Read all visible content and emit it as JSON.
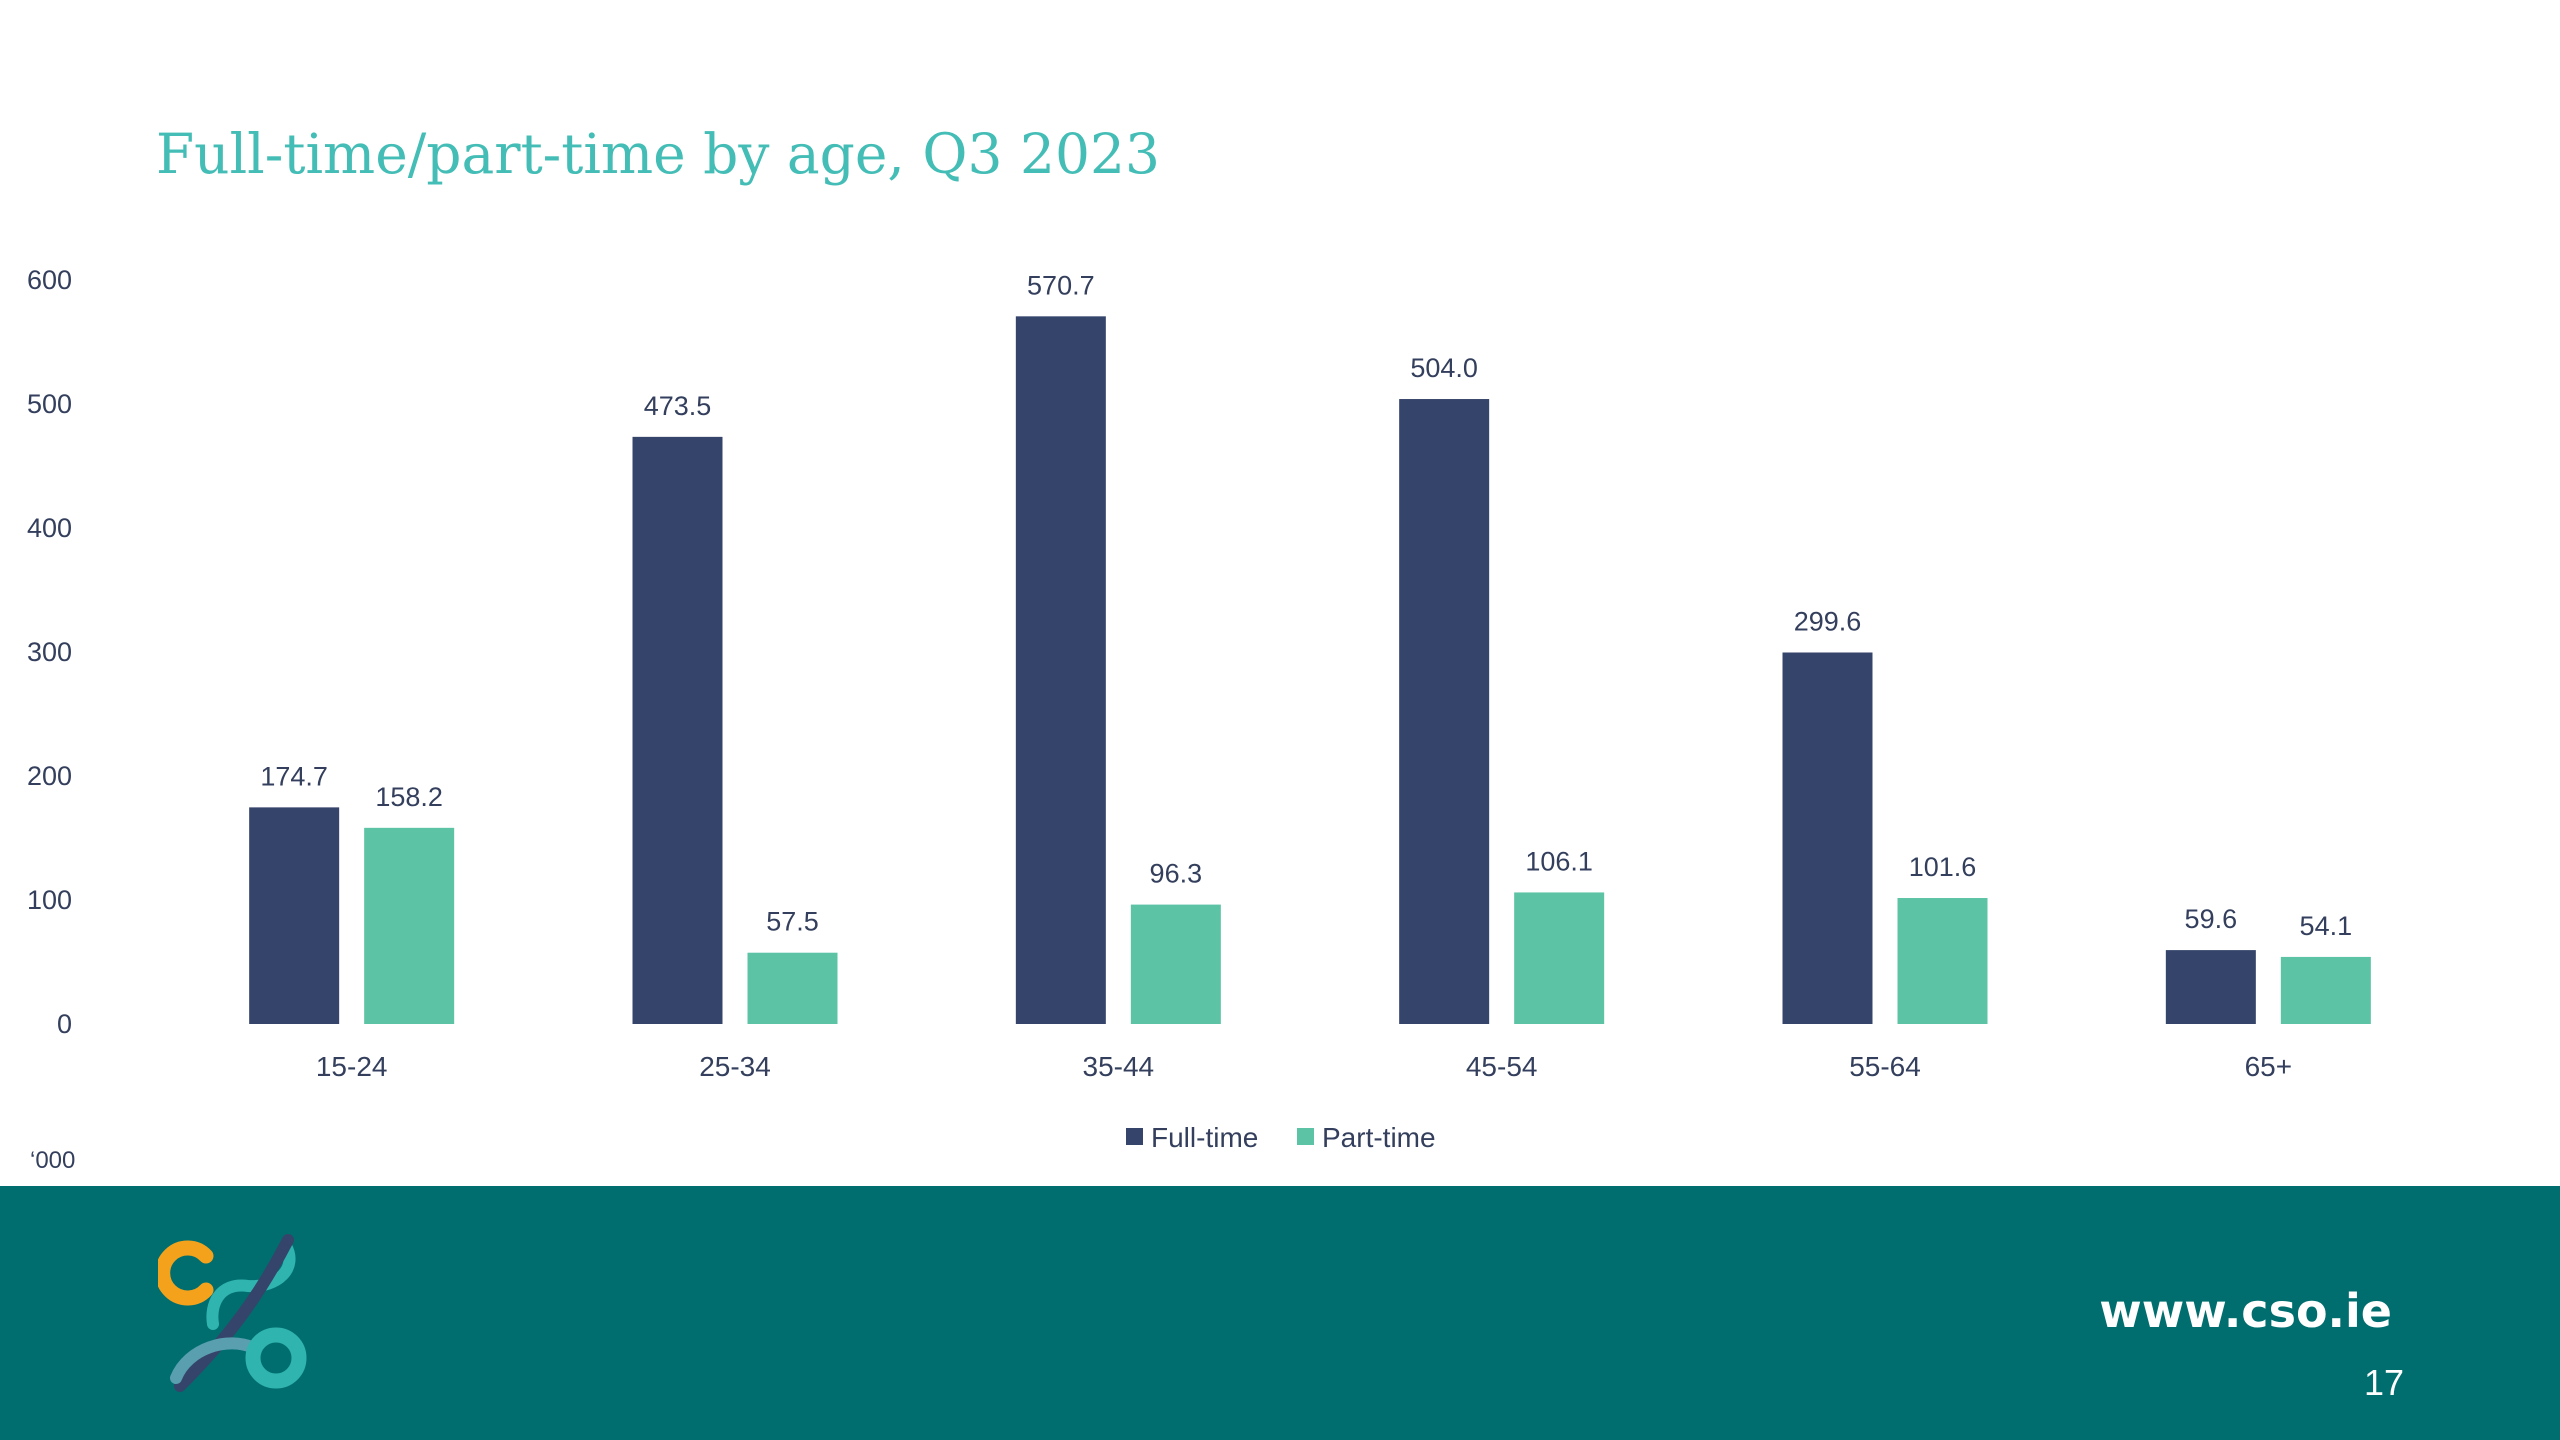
{
  "slide": {
    "title": "Full-time/part-time by age, Q3 2023",
    "unit_note": "‘000",
    "url": "www.cso.ie",
    "page_number": "17",
    "logo_icon": "cso-logo-icon"
  },
  "colors": {
    "title": "#44bdb6",
    "full_time": "#35446a",
    "part_time": "#5cc3a4",
    "footer": "#006e6f",
    "text": "#333f5c"
  },
  "chart_data": {
    "type": "bar",
    "title": "Full-time/part-time by age, Q3 2023",
    "xlabel": "",
    "ylabel": "",
    "unit": "‘000",
    "categories": [
      "15-24",
      "25-34",
      "35-44",
      "45-54",
      "55-64",
      "65+"
    ],
    "series": [
      {
        "name": "Full-time",
        "values": [
          174.7,
          473.5,
          570.7,
          504.0,
          299.6,
          59.6
        ],
        "labels": [
          "174.7",
          "473.5",
          "570.7",
          "504.0",
          "299.6",
          "59.6"
        ]
      },
      {
        "name": "Part-time",
        "values": [
          158.2,
          57.5,
          96.3,
          106.1,
          101.6,
          54.1
        ],
        "labels": [
          "158.2",
          "57.5",
          "96.3",
          "106.1",
          "101.6",
          "54.1"
        ]
      }
    ],
    "ylim": [
      0,
      600
    ],
    "yticks": [
      0,
      100,
      200,
      300,
      400,
      500,
      600
    ],
    "grid": false,
    "legend": "bottom-center"
  }
}
